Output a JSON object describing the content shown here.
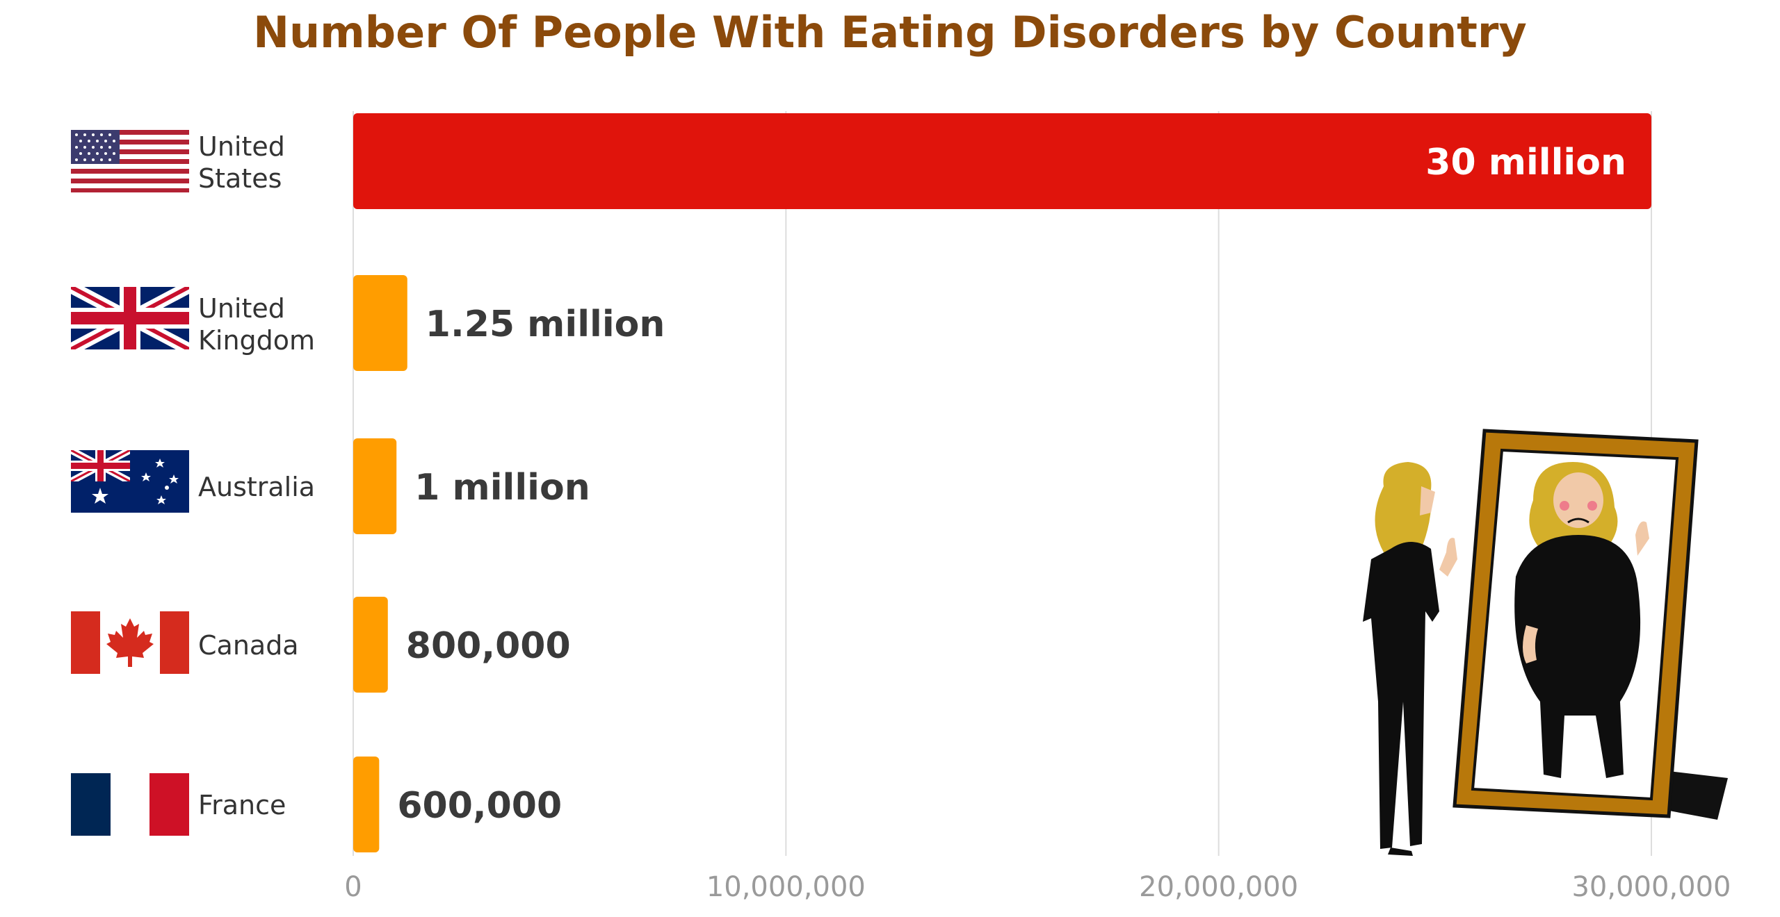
{
  "chart_data": {
    "type": "bar",
    "orientation": "horizontal",
    "title": "Number Of People With Eating Disorders by Country",
    "categories": [
      {
        "line1": "United",
        "line2": "States",
        "flag": "us-flag"
      },
      {
        "line1": "United",
        "line2": "Kingdom",
        "flag": "uk-flag"
      },
      {
        "line1": "Australia",
        "line2": "",
        "flag": "australia-flag"
      },
      {
        "line1": "Canada",
        "line2": "",
        "flag": "canada-flag"
      },
      {
        "line1": "France",
        "line2": "",
        "flag": "france-flag"
      }
    ],
    "values": [
      30000000,
      1250000,
      1000000,
      800000,
      600000
    ],
    "value_labels": [
      "30 million",
      "1.25 million",
      "1 million",
      "800,000",
      "600,000"
    ],
    "xlim": [
      0,
      30000000
    ],
    "xticks": [
      0,
      10000000,
      20000000,
      30000000
    ],
    "xtick_labels": [
      "0",
      "10,000,000",
      "20,000,000",
      "30,000,000"
    ],
    "grid": "vertical",
    "colors": {
      "title": "#8B4A0B",
      "highlight_bar": "#E0140C",
      "bar": "#FF9D00",
      "value_label": "#3A3A3A",
      "highlight_value_label": "#FFFFFF",
      "tick_label": "#9A9A9A",
      "category_label": "#333333",
      "grid": "#DDDDDD"
    },
    "illustration": "woman-looking-in-mirror"
  }
}
